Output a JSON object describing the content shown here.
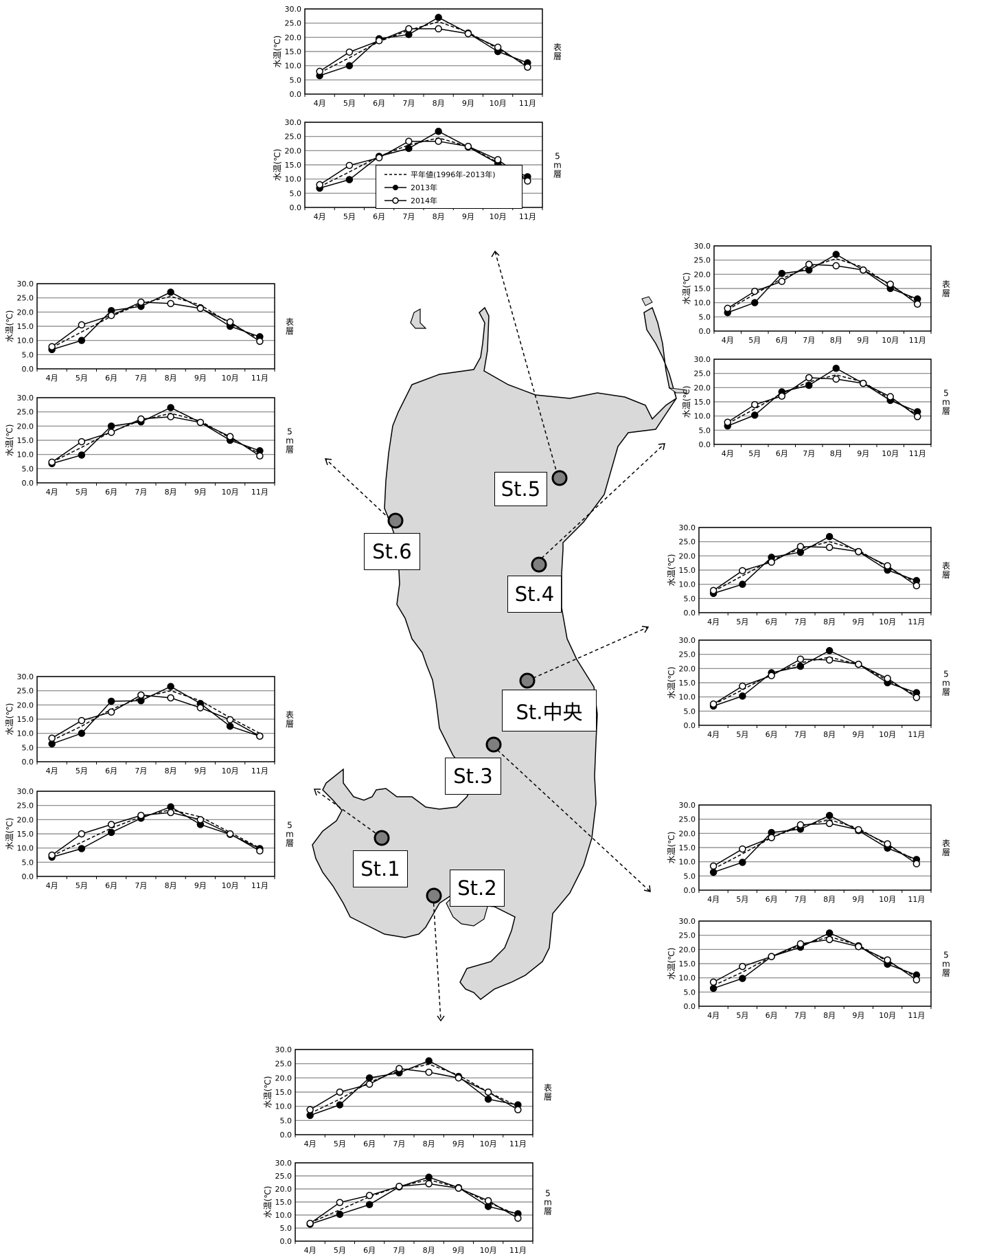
{
  "colors": {
    "lake_fill": "#d9d9d9",
    "station_dot": "#7f7f7f",
    "series_2013": "#000000",
    "series_2014": "#ffffff",
    "gridline": "#808080"
  },
  "legend": {
    "avg_label": "平年値(1996年-2013年)",
    "y2013_label": "2013年",
    "y2014_label": "2014年"
  },
  "stations": [
    {
      "id": "st5",
      "label": "St.5"
    },
    {
      "id": "st6",
      "label": "St.6"
    },
    {
      "id": "st4",
      "label": "St.4"
    },
    {
      "id": "stc",
      "label": "St.中央"
    },
    {
      "id": "st3",
      "label": "St.3"
    },
    {
      "id": "st1",
      "label": "St.1"
    },
    {
      "id": "st2",
      "label": "St.2"
    }
  ],
  "chart_data": [
    {
      "type": "line",
      "station": "St.5",
      "layer": "表層",
      "ylabel": "水温(℃)",
      "ylim": [
        0,
        30
      ],
      "yticks": [
        "0.0",
        "5.0",
        "10.0",
        "15.0",
        "20.0",
        "25.0",
        "30.0"
      ],
      "categories": [
        "4月",
        "5月",
        "6月",
        "7月",
        "8月",
        "9月",
        "10月",
        "11月"
      ],
      "series": [
        {
          "name": "平年値(1996年-2013年)",
          "values": [
            7.5,
            12.8,
            18.5,
            22.5,
            25.5,
            21.8,
            16.0,
            10.0
          ]
        },
        {
          "name": "2013年",
          "values": [
            6.5,
            10.0,
            19.5,
            21.0,
            27.0,
            21.5,
            15.0,
            11.0
          ]
        },
        {
          "name": "2014年",
          "values": [
            8.0,
            14.8,
            18.8,
            23.0,
            23.0,
            21.3,
            16.5,
            9.5
          ]
        }
      ]
    },
    {
      "type": "line",
      "station": "St.5",
      "layer": "5m層",
      "ylabel": "水温(℃)",
      "ylim": [
        0,
        30
      ],
      "yticks": [
        "0.0",
        "5.0",
        "10.0",
        "15.0",
        "20.0",
        "25.0",
        "30.0"
      ],
      "categories": [
        "4月",
        "5月",
        "6月",
        "7月",
        "8月",
        "9月",
        "10月",
        "11月"
      ],
      "series": [
        {
          "name": "平年値(1996年-2013年)",
          "values": [
            7.3,
            12.5,
            18.0,
            22.0,
            24.5,
            21.5,
            15.8,
            10.0
          ]
        },
        {
          "name": "2013年",
          "values": [
            6.8,
            9.8,
            18.0,
            20.8,
            26.8,
            21.3,
            15.5,
            10.8
          ]
        },
        {
          "name": "2014年",
          "values": [
            8.0,
            14.8,
            17.5,
            23.3,
            23.3,
            21.5,
            16.8,
            9.3
          ]
        }
      ]
    },
    {
      "type": "line",
      "station": "St.6",
      "layer": "表層",
      "ylabel": "水温(℃)",
      "ylim": [
        0,
        30
      ],
      "yticks": [
        "0.0",
        "5.0",
        "10.0",
        "15.0",
        "20.0",
        "25.0",
        "30.0"
      ],
      "categories": [
        "4月",
        "5月",
        "6月",
        "7月",
        "8月",
        "9月",
        "10月",
        "11月"
      ],
      "series": [
        {
          "name": "平年値(1996年-2013年)",
          "values": [
            7.5,
            13.0,
            18.5,
            23.0,
            25.5,
            22.5,
            16.0,
            10.5
          ]
        },
        {
          "name": "2013年",
          "values": [
            6.8,
            10.0,
            20.5,
            22.0,
            27.0,
            21.5,
            15.0,
            11.3
          ]
        },
        {
          "name": "2014年",
          "values": [
            7.8,
            15.5,
            18.8,
            23.5,
            23.0,
            21.3,
            16.5,
            9.7
          ]
        }
      ]
    },
    {
      "type": "line",
      "station": "St.6",
      "layer": "5m層",
      "ylabel": "水温(℃)",
      "ylim": [
        0,
        30
      ],
      "yticks": [
        "0.0",
        "5.0",
        "10.0",
        "15.0",
        "20.0",
        "25.0",
        "30.0"
      ],
      "categories": [
        "4月",
        "5月",
        "6月",
        "7月",
        "8月",
        "9月",
        "10月",
        "11月"
      ],
      "series": [
        {
          "name": "平年値(1996年-2013年)",
          "values": [
            7.3,
            12.5,
            18.0,
            22.0,
            24.5,
            21.8,
            15.8,
            10.3
          ]
        },
        {
          "name": "2013年",
          "values": [
            6.8,
            9.8,
            20.0,
            21.5,
            26.5,
            21.3,
            15.0,
            11.3
          ]
        },
        {
          "name": "2014年",
          "values": [
            7.3,
            14.5,
            17.8,
            22.5,
            23.3,
            21.3,
            16.3,
            9.5
          ]
        }
      ]
    },
    {
      "type": "line",
      "station": "St.4",
      "layer": "表層",
      "ylabel": "水温(℃)",
      "ylim": [
        0,
        30
      ],
      "yticks": [
        "0.0",
        "5.0",
        "10.0",
        "15.0",
        "20.0",
        "25.0",
        "30.0"
      ],
      "categories": [
        "4月",
        "5月",
        "6月",
        "7月",
        "8月",
        "9月",
        "10月",
        "11月"
      ],
      "series": [
        {
          "name": "平年値(1996年-2013年)",
          "values": [
            7.5,
            13.0,
            18.5,
            22.5,
            25.5,
            22.5,
            16.0,
            10.5
          ]
        },
        {
          "name": "2013年",
          "values": [
            6.5,
            10.0,
            20.3,
            21.5,
            27.0,
            21.5,
            15.0,
            11.3
          ]
        },
        {
          "name": "2014年",
          "values": [
            8.0,
            14.0,
            17.5,
            23.5,
            23.0,
            21.5,
            16.5,
            9.5
          ]
        }
      ]
    },
    {
      "type": "line",
      "station": "St.4",
      "layer": "5m層",
      "ylabel": "水温(℃)",
      "ylim": [
        0,
        30
      ],
      "yticks": [
        "0.0",
        "5.0",
        "10.0",
        "15.0",
        "20.0",
        "25.0",
        "30.0"
      ],
      "categories": [
        "4月",
        "5月",
        "6月",
        "7月",
        "8月",
        "9月",
        "10月",
        "11月"
      ],
      "series": [
        {
          "name": "平年値(1996年-2013年)",
          "values": [
            7.3,
            12.5,
            18.0,
            22.0,
            24.5,
            22.0,
            16.0,
            10.5
          ]
        },
        {
          "name": "2013年",
          "values": [
            6.5,
            10.3,
            18.5,
            20.8,
            26.8,
            21.5,
            15.5,
            11.5
          ]
        },
        {
          "name": "2014年",
          "values": [
            7.8,
            14.0,
            17.0,
            23.5,
            23.0,
            21.5,
            16.8,
            9.8
          ]
        }
      ]
    },
    {
      "type": "line",
      "station": "St.中央",
      "layer": "表層",
      "ylabel": "水温(℃)",
      "ylim": [
        0,
        30
      ],
      "yticks": [
        "0.0",
        "5.0",
        "10.0",
        "15.0",
        "20.0",
        "25.0",
        "30.0"
      ],
      "categories": [
        "4月",
        "5月",
        "6月",
        "7月",
        "8月",
        "9月",
        "10月",
        "11月"
      ],
      "series": [
        {
          "name": "平年値(1996年-2013年)",
          "values": [
            7.5,
            13.0,
            18.5,
            22.5,
            25.0,
            22.0,
            16.0,
            10.5
          ]
        },
        {
          "name": "2013年",
          "values": [
            6.8,
            10.0,
            19.5,
            21.3,
            26.8,
            21.5,
            15.0,
            11.3
          ]
        },
        {
          "name": "2014年",
          "values": [
            7.8,
            14.8,
            17.8,
            23.3,
            23.0,
            21.5,
            16.5,
            9.5
          ]
        }
      ]
    },
    {
      "type": "line",
      "station": "St.中央",
      "layer": "5m層",
      "ylabel": "水温(℃)",
      "ylim": [
        0,
        30
      ],
      "yticks": [
        "0.0",
        "5.0",
        "10.0",
        "15.0",
        "20.0",
        "25.0",
        "30.0"
      ],
      "categories": [
        "4月",
        "5月",
        "6月",
        "7月",
        "8月",
        "9月",
        "10月",
        "11月"
      ],
      "series": [
        {
          "name": "平年値(1996年-2013年)",
          "values": [
            7.3,
            12.5,
            18.0,
            22.0,
            24.0,
            21.5,
            15.8,
            10.5
          ]
        },
        {
          "name": "2013年",
          "values": [
            6.8,
            10.3,
            18.5,
            20.8,
            26.3,
            21.5,
            15.0,
            11.5
          ]
        },
        {
          "name": "2014年",
          "values": [
            7.5,
            13.8,
            17.5,
            23.3,
            23.0,
            21.5,
            16.5,
            9.8
          ]
        }
      ]
    },
    {
      "type": "line",
      "station": "St.3",
      "layer": "表層",
      "ylabel": "水温(℃)",
      "ylim": [
        0,
        30
      ],
      "yticks": [
        "0.0",
        "5.0",
        "10.0",
        "15.0",
        "20.0",
        "25.0",
        "30.0"
      ],
      "categories": [
        "4月",
        "5月",
        "6月",
        "7月",
        "8月",
        "9月",
        "10月",
        "11月"
      ],
      "series": [
        {
          "name": "平年値(1996年-2013年)",
          "values": [
            7.5,
            12.8,
            18.5,
            22.5,
            24.8,
            21.8,
            15.8,
            10.3
          ]
        },
        {
          "name": "2013年",
          "values": [
            6.3,
            9.8,
            20.3,
            21.5,
            26.3,
            21.0,
            14.8,
            10.8
          ]
        },
        {
          "name": "2014年",
          "values": [
            8.5,
            14.5,
            18.5,
            23.0,
            23.5,
            21.3,
            16.3,
            9.3
          ]
        }
      ]
    },
    {
      "type": "line",
      "station": "St.3",
      "layer": "5m層",
      "ylabel": "水温(℃)",
      "ylim": [
        0,
        30
      ],
      "yticks": [
        "0.0",
        "5.0",
        "10.0",
        "15.0",
        "20.0",
        "25.0",
        "30.0"
      ],
      "categories": [
        "4月",
        "5月",
        "6月",
        "7月",
        "8月",
        "9月",
        "10月",
        "11月"
      ],
      "series": [
        {
          "name": "平年値(1996年-2013年)",
          "values": [
            7.3,
            12.0,
            17.5,
            21.5,
            24.5,
            21.5,
            15.8,
            10.3
          ]
        },
        {
          "name": "2013年",
          "values": [
            6.3,
            9.8,
            17.5,
            20.8,
            25.8,
            21.3,
            14.8,
            11.0
          ]
        },
        {
          "name": "2014年",
          "values": [
            8.5,
            14.0,
            17.5,
            22.0,
            23.5,
            21.0,
            16.3,
            9.3
          ]
        }
      ]
    },
    {
      "type": "line",
      "station": "St.1",
      "layer": "表層",
      "ylabel": "水温(℃)",
      "ylim": [
        0,
        30
      ],
      "yticks": [
        "0.0",
        "5.0",
        "10.0",
        "15.0",
        "20.0",
        "25.0",
        "30.0"
      ],
      "categories": [
        "4月",
        "5月",
        "6月",
        "7月",
        "8月",
        "9月",
        "10月",
        "11月"
      ],
      "series": [
        {
          "name": "平年値(1996年-2013年)",
          "values": [
            7.5,
            12.5,
            18.5,
            22.5,
            25.0,
            21.5,
            15.5,
            10.0
          ]
        },
        {
          "name": "2013年",
          "values": [
            6.3,
            10.0,
            21.3,
            21.5,
            26.5,
            20.5,
            12.5,
            9.0
          ]
        },
        {
          "name": "2014年",
          "values": [
            8.3,
            14.5,
            17.5,
            23.5,
            22.5,
            19.0,
            14.8,
            9.0
          ]
        }
      ]
    },
    {
      "type": "line",
      "station": "St.1",
      "layer": "5m層",
      "ylabel": "水温(℃)",
      "ylim": [
        0,
        30
      ],
      "yticks": [
        "0.0",
        "5.0",
        "10.0",
        "15.0",
        "20.0",
        "25.0",
        "30.0"
      ],
      "categories": [
        "4月",
        "5月",
        "6月",
        "7月",
        "8月",
        "9月",
        "10月",
        "11月"
      ],
      "series": [
        {
          "name": "平年値(1996年-2013年)",
          "values": [
            7.3,
            12.0,
            17.0,
            21.0,
            23.5,
            21.0,
            15.5,
            10.0
          ]
        },
        {
          "name": "2013年",
          "values": [
            6.8,
            9.8,
            15.5,
            20.5,
            24.5,
            18.3,
            14.8,
            9.8
          ]
        },
        {
          "name": "2014年",
          "values": [
            7.5,
            15.0,
            18.3,
            21.5,
            22.5,
            20.0,
            15.0,
            9.0
          ]
        }
      ]
    },
    {
      "type": "line",
      "station": "St.2",
      "layer": "表層",
      "ylabel": "水温(℃)",
      "ylim": [
        0,
        30
      ],
      "yticks": [
        "0.0",
        "5.0",
        "10.0",
        "15.0",
        "20.0",
        "25.0",
        "30.0"
      ],
      "categories": [
        "4月",
        "5月",
        "6月",
        "7月",
        "8月",
        "9月",
        "10月",
        "11月"
      ],
      "series": [
        {
          "name": "平年値(1996年-2013年)",
          "values": [
            7.5,
            12.5,
            18.5,
            22.5,
            24.8,
            21.0,
            15.0,
            10.0
          ]
        },
        {
          "name": "2013年",
          "values": [
            6.8,
            10.5,
            20.0,
            21.8,
            26.0,
            20.5,
            12.5,
            10.5
          ]
        },
        {
          "name": "2014年",
          "values": [
            8.8,
            15.0,
            17.8,
            23.3,
            22.0,
            20.0,
            15.0,
            8.8
          ]
        }
      ]
    },
    {
      "type": "line",
      "station": "St.2",
      "layer": "5m層",
      "ylabel": "水温(℃)",
      "ylim": [
        0,
        30
      ],
      "yticks": [
        "0.0",
        "5.0",
        "10.0",
        "15.0",
        "20.0",
        "25.0",
        "30.0"
      ],
      "categories": [
        "4月",
        "5月",
        "6月",
        "7月",
        "8月",
        "9月",
        "10月",
        "11月"
      ],
      "series": [
        {
          "name": "平年値(1996年-2013年)",
          "values": [
            7.0,
            12.0,
            17.0,
            21.0,
            23.5,
            20.5,
            14.8,
            10.0
          ]
        },
        {
          "name": "2013年",
          "values": [
            6.5,
            10.3,
            14.0,
            20.8,
            24.5,
            20.5,
            13.3,
            10.5
          ]
        },
        {
          "name": "2014年",
          "values": [
            6.8,
            14.8,
            17.5,
            21.0,
            22.0,
            20.3,
            15.5,
            8.8
          ]
        }
      ]
    }
  ]
}
